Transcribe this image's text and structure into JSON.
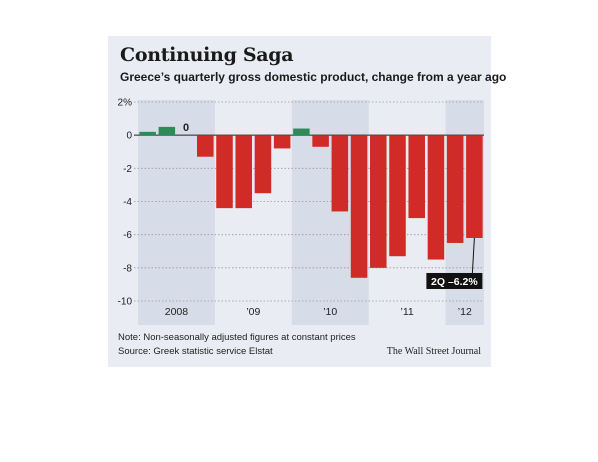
{
  "header": {
    "title": "Continuing Saga",
    "subtitle": "Greece’s quarterly gross domestic product, change from a year ago"
  },
  "footer": {
    "note": "Note: Non-seasonally adjusted figures at constant prices",
    "source": "Source: Greek statistic service Elstat",
    "credit": "The Wall Street Journal"
  },
  "chart_data": {
    "type": "bar",
    "title": "Continuing Saga",
    "subtitle": "Greece’s quarterly gross domestic product, change from a year ago",
    "xlabel": "",
    "ylabel": "",
    "ylim": [
      -10,
      2
    ],
    "y_ticks": [
      2,
      0,
      -2,
      -4,
      -6,
      -8,
      -10
    ],
    "y_tick_labels": [
      "2%",
      "0",
      "-2",
      "-4",
      "-6",
      "-8",
      "-10"
    ],
    "grid": true,
    "categories": [
      "2008 Q1",
      "2008 Q2",
      "2008 Q3",
      "2008 Q4",
      "2009 Q1",
      "2009 Q2",
      "2009 Q3",
      "2009 Q4",
      "2010 Q1",
      "2010 Q2",
      "2010 Q3",
      "2010 Q4",
      "2011 Q1",
      "2011 Q2",
      "2011 Q3",
      "2011 Q4",
      "2012 Q1",
      "2012 Q2"
    ],
    "values": [
      0.2,
      0.5,
      0,
      -1.3,
      -4.4,
      -4.4,
      -3.5,
      -0.8,
      0.4,
      -0.7,
      -4.6,
      -8.6,
      -8.0,
      -7.3,
      -5.0,
      -7.5,
      -6.5,
      -6.2
    ],
    "year_labels": [
      "2008",
      "’09",
      "’10",
      "’11",
      "’12"
    ],
    "zero_label": "0",
    "callout": "2Q –6.2%",
    "colors": {
      "positive": "#2e8b57",
      "negative": "#d02b27",
      "shade": "#d6dde8",
      "background": "#e9ecf2",
      "grid": "#999999"
    }
  }
}
